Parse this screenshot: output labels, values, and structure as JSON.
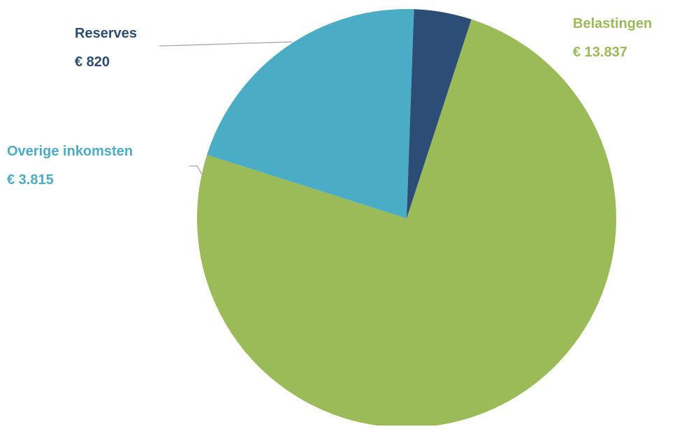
{
  "chart_data": {
    "type": "pie",
    "slices": [
      {
        "label": "Belastingen",
        "value_label": "€ 13.837",
        "value": 13837,
        "color": "#9BBB59"
      },
      {
        "label": "Overige inkomsten",
        "value_label": "€ 3.815",
        "value": 3815,
        "color": "#4BACC6"
      },
      {
        "label": "Reserves",
        "value_label": "€ 820",
        "value": 820,
        "color": "#2C4D75"
      }
    ],
    "leader_line_color": "#A6A6A6",
    "background": "#FFFFFF"
  }
}
